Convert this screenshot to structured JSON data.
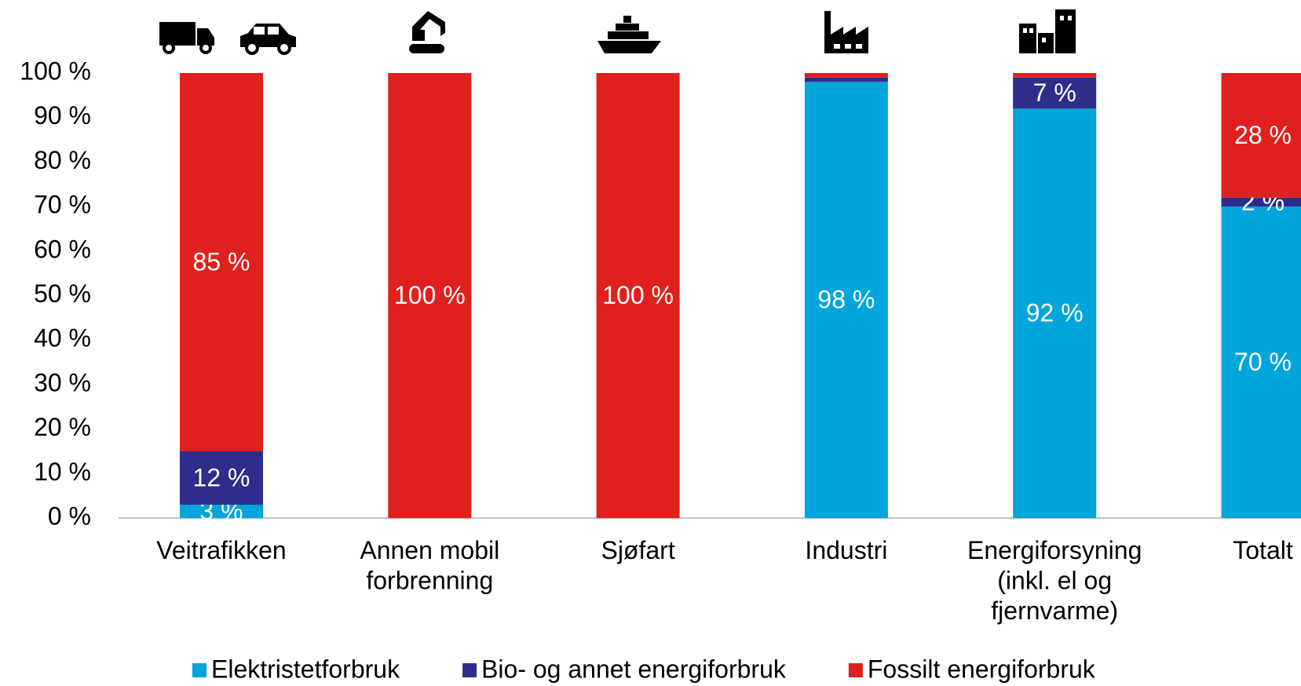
{
  "chart_data": {
    "type": "stacked_bar",
    "categories": [
      "Veitrafikken",
      "Annen mobil forbrenning",
      "Sjøfart",
      "Industri",
      "Energiforsyning (inkl. el og fjernvarme)",
      "Totalt"
    ],
    "series": [
      {
        "name": "Elektristetforbruk",
        "color": "#00a5dc",
        "values": [
          3,
          0,
          0,
          98,
          92,
          70
        ],
        "value_labels": [
          "3 %",
          null,
          null,
          "98 %",
          "92 %",
          "70 %"
        ]
      },
      {
        "name": "Bio- og annet energiforbruk",
        "color": "#2e2d8c",
        "values": [
          12,
          0,
          0,
          1,
          7,
          2
        ],
        "value_labels": [
          "12 %",
          null,
          null,
          null,
          "7 %",
          "2 %"
        ]
      },
      {
        "name": "Fossilt energiforbruk",
        "color": "#e0201e",
        "values": [
          85,
          100,
          100,
          1,
          1,
          28
        ],
        "value_labels": [
          "85 %",
          "100 %",
          "100 %",
          null,
          null,
          "28 %"
        ]
      }
    ],
    "ylim": [
      0,
      100
    ],
    "yticks": [
      {
        "value": 0,
        "label": "0 %"
      },
      {
        "value": 10,
        "label": "10 %"
      },
      {
        "value": 20,
        "label": "20 %"
      },
      {
        "value": 30,
        "label": "30 %"
      },
      {
        "value": 40,
        "label": "40 %"
      },
      {
        "value": 50,
        "label": "50 %"
      },
      {
        "value": 60,
        "label": "60 %"
      },
      {
        "value": 70,
        "label": "70 %"
      },
      {
        "value": 80,
        "label": "80 %"
      },
      {
        "value": 90,
        "label": "90 %"
      },
      {
        "value": 100,
        "label": "100 %"
      }
    ],
    "legend": "bottom"
  }
}
